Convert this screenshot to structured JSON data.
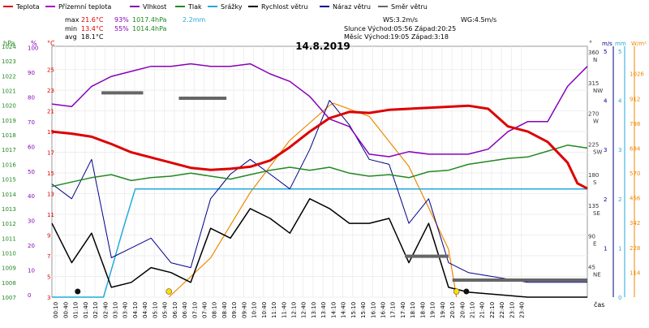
{
  "chart_data": {
    "type": "line",
    "title": "14.8.2019",
    "xlabel": "čas",
    "x_ticks": [
      "00:10",
      "00:40",
      "01:10",
      "01:40",
      "02:10",
      "02:40",
      "03:10",
      "03:40",
      "04:10",
      "04:40",
      "05:10",
      "05:40",
      "06:10",
      "06:40",
      "07:10",
      "07:40",
      "08:10",
      "08:40",
      "09:10",
      "09:40",
      "10:10",
      "10:40",
      "11:10",
      "11:40",
      "12:10",
      "12:40",
      "13:10",
      "13:40",
      "14:10",
      "14:40",
      "15:10",
      "15:40",
      "16:10",
      "16:40",
      "17:10",
      "17:40",
      "18:10",
      "18:40",
      "19:10",
      "19:40",
      "20:10",
      "20:40",
      "21:10",
      "21:40",
      "22:10",
      "22:40",
      "23:10",
      "23:40"
    ],
    "legend": [
      {
        "name": "Teplota",
        "color": "#dd0000"
      },
      {
        "name": "Přízemní teplota",
        "color": "#aa00cc"
      },
      {
        "name": "Vlhkost",
        "color": "#8800bb"
      },
      {
        "name": "Tlak",
        "color": "#228822"
      },
      {
        "name": "Srážky",
        "color": "#22aadd"
      },
      {
        "name": "Rychlost větru",
        "color": "#000000"
      },
      {
        "name": "Náraz větru",
        "color": "#000088"
      },
      {
        "name": "Směr větru",
        "color": "#666666"
      }
    ],
    "stats": {
      "max_label": "max",
      "max_temp": "21.6°C",
      "max_hum": "93%",
      "max_press": "1017.4hPa",
      "max_rain": "2.2mm",
      "min_label": "min",
      "min_temp": "13.4°C",
      "min_hum": "55%",
      "min_press": "1014.4hPa",
      "avg_label": "avg",
      "avg_temp": "18.1°C"
    },
    "info": {
      "ws": "WS:3.2m/s",
      "wg": "WG:4.5m/s",
      "sun": "Slunce Východ:05:56  Západ:20:25",
      "moon": "Měsíc  Východ:19:05  Západ:3:18"
    },
    "axes": {
      "hpa": {
        "label": "hPa",
        "ticks": [
          "1024",
          "1023",
          "1022",
          "1021",
          "1020",
          "1019",
          "1018",
          "1017",
          "1016",
          "1015",
          "1014",
          "1013",
          "1012",
          "1011",
          "1010",
          "1009",
          "1008",
          "1007"
        ],
        "color": "#228822"
      },
      "pct": {
        "label": "%",
        "ticks": [
          "100",
          "90",
          "80",
          "70",
          "60",
          "50",
          "40",
          "30",
          "20",
          "10",
          "0"
        ],
        "color": "#8800bb"
      },
      "degc": {
        "label": "°C",
        "ticks": [
          "25",
          "23",
          "21",
          "19",
          "17",
          "15",
          "13",
          "11",
          "9",
          "7",
          "5",
          "3"
        ],
        "color": "#dd0000"
      },
      "dir": {
        "label": "°",
        "ticks": [
          {
            "deg": "360",
            "card": "N"
          },
          {
            "deg": "315",
            "card": "NW"
          },
          {
            "deg": "270",
            "card": "W"
          },
          {
            "deg": "225",
            "card": "SW"
          },
          {
            "deg": "180",
            "card": "S"
          },
          {
            "deg": "135",
            "card": "SE"
          },
          {
            "deg": "90",
            "card": "E"
          },
          {
            "deg": "45",
            "card": "NE"
          }
        ],
        "color": "#333333"
      },
      "ms": {
        "label": "m/s",
        "ticks": [
          "5",
          "4",
          "3",
          "2",
          "1"
        ],
        "color": "#000088"
      },
      "mm": {
        "label": "mm",
        "ticks": [
          "5",
          "4",
          "3",
          "2",
          "1",
          "0"
        ],
        "color": "#22aadd"
      },
      "wm": {
        "label": "W/m²",
        "ticks": [
          "1026",
          "912",
          "798",
          "684",
          "570",
          "456",
          "342",
          "228",
          "114"
        ],
        "color": "#ee8800"
      }
    },
    "series": {
      "temperature": {
        "unit": "°C",
        "points": [
          [
            0,
            19.0
          ],
          [
            1,
            18.8
          ],
          [
            2,
            18.5
          ],
          [
            3,
            17.8
          ],
          [
            4,
            17.0
          ],
          [
            5,
            16.5
          ],
          [
            6,
            16.0
          ],
          [
            7,
            15.5
          ],
          [
            8,
            15.3
          ],
          [
            9,
            15.4
          ],
          [
            10,
            15.6
          ],
          [
            11,
            16.2
          ],
          [
            12,
            17.5
          ],
          [
            13,
            19.0
          ],
          [
            14,
            20.3
          ],
          [
            15,
            20.9
          ],
          [
            16,
            20.8
          ],
          [
            17,
            21.1
          ],
          [
            18,
            21.2
          ],
          [
            19,
            21.3
          ],
          [
            20,
            21.4
          ],
          [
            21,
            21.5
          ],
          [
            22,
            21.2
          ],
          [
            23,
            19.5
          ],
          [
            24,
            19.0
          ],
          [
            25,
            18.0
          ],
          [
            26,
            16.0
          ],
          [
            26.5,
            14.0
          ],
          [
            27,
            13.5
          ]
        ]
      },
      "humidity": {
        "unit": "%",
        "points": [
          [
            0,
            77
          ],
          [
            1,
            76
          ],
          [
            2,
            84
          ],
          [
            3,
            88
          ],
          [
            4,
            90
          ],
          [
            5,
            92
          ],
          [
            6,
            92
          ],
          [
            7,
            93
          ],
          [
            8,
            92
          ],
          [
            9,
            92
          ],
          [
            10,
            93
          ],
          [
            11,
            89
          ],
          [
            12,
            86
          ],
          [
            13,
            80
          ],
          [
            14,
            71
          ],
          [
            15,
            68
          ],
          [
            16,
            57
          ],
          [
            17,
            56
          ],
          [
            18,
            58
          ],
          [
            19,
            57
          ],
          [
            20,
            57
          ],
          [
            21,
            57
          ],
          [
            22,
            59
          ],
          [
            23,
            66
          ],
          [
            24,
            70
          ],
          [
            25,
            70
          ],
          [
            26,
            84
          ],
          [
            27,
            92
          ]
        ]
      },
      "pressure": {
        "unit": "hPa",
        "points": [
          [
            0,
            1014.5
          ],
          [
            1,
            1014.8
          ],
          [
            2,
            1015.1
          ],
          [
            3,
            1015.3
          ],
          [
            4,
            1014.9
          ],
          [
            5,
            1015.1
          ],
          [
            6,
            1015.2
          ],
          [
            7,
            1015.4
          ],
          [
            8,
            1015.2
          ],
          [
            9,
            1015.0
          ],
          [
            10,
            1015.3
          ],
          [
            11,
            1015.6
          ],
          [
            12,
            1015.8
          ],
          [
            13,
            1015.6
          ],
          [
            14,
            1015.8
          ],
          [
            15,
            1015.4
          ],
          [
            16,
            1015.2
          ],
          [
            17,
            1015.3
          ],
          [
            18,
            1015.1
          ],
          [
            19,
            1015.5
          ],
          [
            20,
            1015.6
          ],
          [
            21,
            1016.0
          ],
          [
            22,
            1016.2
          ],
          [
            23,
            1016.4
          ],
          [
            24,
            1016.5
          ],
          [
            25,
            1016.9
          ],
          [
            26,
            1017.3
          ],
          [
            27,
            1017.1
          ]
        ]
      },
      "precipitation": {
        "unit": "mm",
        "points": [
          [
            0,
            0
          ],
          [
            2.6,
            0
          ],
          [
            3.6,
            1.4
          ],
          [
            4.2,
            2.2
          ],
          [
            27,
            2.2
          ]
        ]
      },
      "solar": {
        "unit": "W/m²",
        "points": [
          [
            5.9,
            0
          ],
          [
            8,
            180
          ],
          [
            10,
            480
          ],
          [
            12,
            720
          ],
          [
            14,
            880
          ],
          [
            14.2,
            890
          ],
          [
            16,
            830
          ],
          [
            18,
            600
          ],
          [
            20,
            220
          ],
          [
            20.4,
            0
          ]
        ]
      },
      "wind_speed": {
        "unit": "m/s",
        "points": [
          [
            0,
            1.5
          ],
          [
            1,
            0.7
          ],
          [
            2,
            1.3
          ],
          [
            3,
            0.2
          ],
          [
            4,
            0.3
          ],
          [
            5,
            0.6
          ],
          [
            6,
            0.5
          ],
          [
            7,
            0.3
          ],
          [
            8,
            1.4
          ],
          [
            9,
            1.2
          ],
          [
            10,
            1.8
          ],
          [
            11,
            1.6
          ],
          [
            12,
            1.3
          ],
          [
            13,
            2.0
          ],
          [
            14,
            1.8
          ],
          [
            15,
            1.5
          ],
          [
            16,
            1.5
          ],
          [
            17,
            1.6
          ],
          [
            18,
            0.7
          ],
          [
            19,
            1.5
          ],
          [
            20,
            0.2
          ],
          [
            21,
            0.1
          ],
          [
            24,
            0
          ],
          [
            27,
            0
          ]
        ]
      },
      "wind_gust": {
        "unit": "m/s",
        "points": [
          [
            0,
            2.3
          ],
          [
            1,
            2.0
          ],
          [
            2,
            2.8
          ],
          [
            3,
            0.8
          ],
          [
            4,
            1.0
          ],
          [
            5,
            1.2
          ],
          [
            6,
            0.7
          ],
          [
            7,
            0.6
          ],
          [
            8,
            2.0
          ],
          [
            9,
            2.5
          ],
          [
            10,
            2.8
          ],
          [
            11,
            2.5
          ],
          [
            12,
            2.2
          ],
          [
            13,
            3.0
          ],
          [
            14,
            4.0
          ],
          [
            15,
            3.5
          ],
          [
            16,
            2.8
          ],
          [
            17,
            2.7
          ],
          [
            18,
            1.5
          ],
          [
            19,
            2.0
          ],
          [
            20,
            0.7
          ],
          [
            21,
            0.5
          ],
          [
            24,
            0.3
          ],
          [
            27,
            0.3
          ]
        ]
      },
      "wind_direction_avg": {
        "unit": "°",
        "segments": [
          [
            2.5,
            4.6,
            300
          ],
          [
            6.4,
            8.8,
            292
          ],
          [
            17.8,
            20.0,
            60
          ],
          [
            20.2,
            27,
            25
          ]
        ]
      },
      "moon_events": [
        1.3,
        20.9
      ],
      "sun_events": [
        5.9,
        20.4
      ]
    }
  }
}
